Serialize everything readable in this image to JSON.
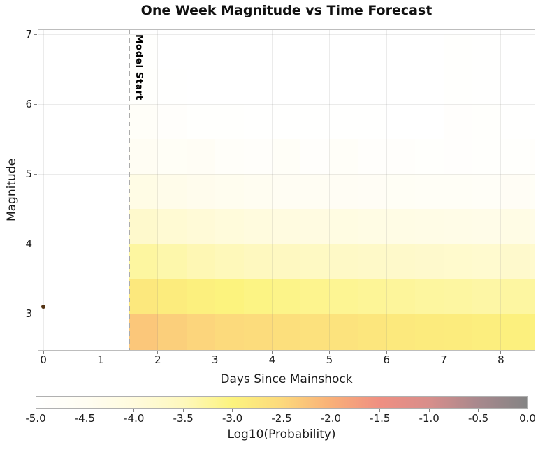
{
  "figure": {
    "title": "One Week Magnitude vs Time Forecast"
  },
  "x_axis": {
    "label": "Days Since Mainshock",
    "tick_values": [
      0,
      1,
      2,
      3,
      4,
      5,
      6,
      7,
      8
    ],
    "range": [
      -0.1,
      8.6
    ]
  },
  "y_axis": {
    "label": "Magnitude",
    "tick_values": [
      3,
      4,
      5,
      6,
      7
    ],
    "range": [
      2.47,
      7.07
    ]
  },
  "annotations": {
    "model_start_label": "Model Start",
    "model_start_day": 1.5,
    "mainshock": {
      "day": 0.0,
      "magnitude": 3.1,
      "color": "#543313"
    }
  },
  "colorbar": {
    "label": "Log10(Probability)",
    "tick_values": [
      -5.0,
      -4.5,
      -4.0,
      -3.5,
      -3.0,
      -2.5,
      -2.0,
      -1.5,
      -1.0,
      -0.5,
      0.0
    ],
    "range": [
      -5,
      0
    ],
    "stops": [
      [
        -5.0,
        "#ffffff"
      ],
      [
        -4.5,
        "#fffdf2"
      ],
      [
        -4.0,
        "#fffbdd"
      ],
      [
        -3.5,
        "#fef8bd"
      ],
      [
        -3.0,
        "#fcf37e"
      ],
      [
        -2.5,
        "#fcd97c"
      ],
      [
        -2.0,
        "#f9b078"
      ],
      [
        -1.5,
        "#ef8f82"
      ],
      [
        -1.0,
        "#d88e8b"
      ],
      [
        -0.5,
        "#a8888d"
      ],
      [
        0.0,
        "#848484"
      ]
    ]
  },
  "chart_data": {
    "type": "heatmap",
    "title": "One Week Magnitude vs Time Forecast",
    "xlabel": "Days Since Mainshock",
    "ylabel": "Magnitude",
    "colorbar_label": "Log10(Probability)",
    "xlim": [
      -0.1,
      8.6
    ],
    "ylim": [
      2.47,
      7.07
    ],
    "x_bin_edges_days": [
      1.5,
      2.0,
      2.5,
      3.0,
      3.5,
      4.0,
      4.5,
      5.0,
      5.5,
      6.0,
      6.5,
      7.0,
      7.5,
      8.0,
      8.5,
      9.0
    ],
    "y_bin_edges_magnitude": [
      2.5,
      3.0,
      3.5,
      4.0,
      4.5,
      5.0,
      5.5,
      6.0,
      6.5,
      7.0
    ],
    "rows_order": "top_to_bottom_mag_6.5-7.0_first",
    "values_log10_probability": [
      [
        -4.94,
        -5.0,
        -5.0,
        -5.0,
        -5.0,
        -5.0,
        -5.0,
        -5.0,
        -5.0,
        -5.0,
        -5.0,
        -4.94,
        -4.97,
        -5.0,
        -5.0
      ],
      [
        -4.88,
        -4.96,
        -5.0,
        -5.0,
        -5.0,
        -5.0,
        -5.0,
        -5.0,
        -5.0,
        -5.0,
        -5.0,
        -4.91,
        -4.95,
        -5.0,
        -5.0
      ],
      [
        -4.74,
        -4.86,
        -4.91,
        -4.94,
        -4.95,
        -4.96,
        -4.97,
        -4.97,
        -4.98,
        -5.0,
        -5.0,
        -4.87,
        -4.9,
        -4.96,
        -5.0
      ],
      [
        -4.55,
        -4.66,
        -4.62,
        -4.76,
        -4.79,
        -4.7,
        -4.83,
        -4.72,
        -4.84,
        -4.86,
        -4.88,
        -4.87,
        -4.89,
        -4.9,
        -4.85
      ],
      [
        -4.2,
        -4.3,
        -4.37,
        -4.43,
        -4.48,
        -4.52,
        -4.55,
        -4.58,
        -4.6,
        -4.63,
        -4.65,
        -4.67,
        -4.69,
        -4.62,
        -4.66
      ],
      [
        -3.74,
        -3.84,
        -3.91,
        -3.97,
        -4.02,
        -4.06,
        -4.1,
        -4.13,
        -4.16,
        -4.19,
        -4.21,
        -4.23,
        -4.26,
        -4.2,
        -4.23
      ],
      [
        -3.27,
        -3.36,
        -3.43,
        -3.48,
        -3.53,
        -3.57,
        -3.6,
        -3.64,
        -3.67,
        -3.7,
        -3.73,
        -3.75,
        -3.78,
        -3.74,
        -3.76
      ],
      [
        -2.78,
        -2.87,
        -2.94,
        -3.0,
        -3.05,
        -3.09,
        -3.13,
        -3.17,
        -3.2,
        -3.23,
        -3.26,
        -3.28,
        -3.31,
        -3.28,
        -3.26
      ],
      [
        -2.28,
        -2.38,
        -2.45,
        -2.51,
        -2.56,
        -2.61,
        -2.66,
        -2.7,
        -2.75,
        -2.8,
        -2.84,
        -2.87,
        -2.9,
        -2.94,
        -2.96
      ]
    ],
    "model_start_day": 1.5,
    "mainshock": {
      "day": 0.0,
      "magnitude": 3.1
    }
  }
}
